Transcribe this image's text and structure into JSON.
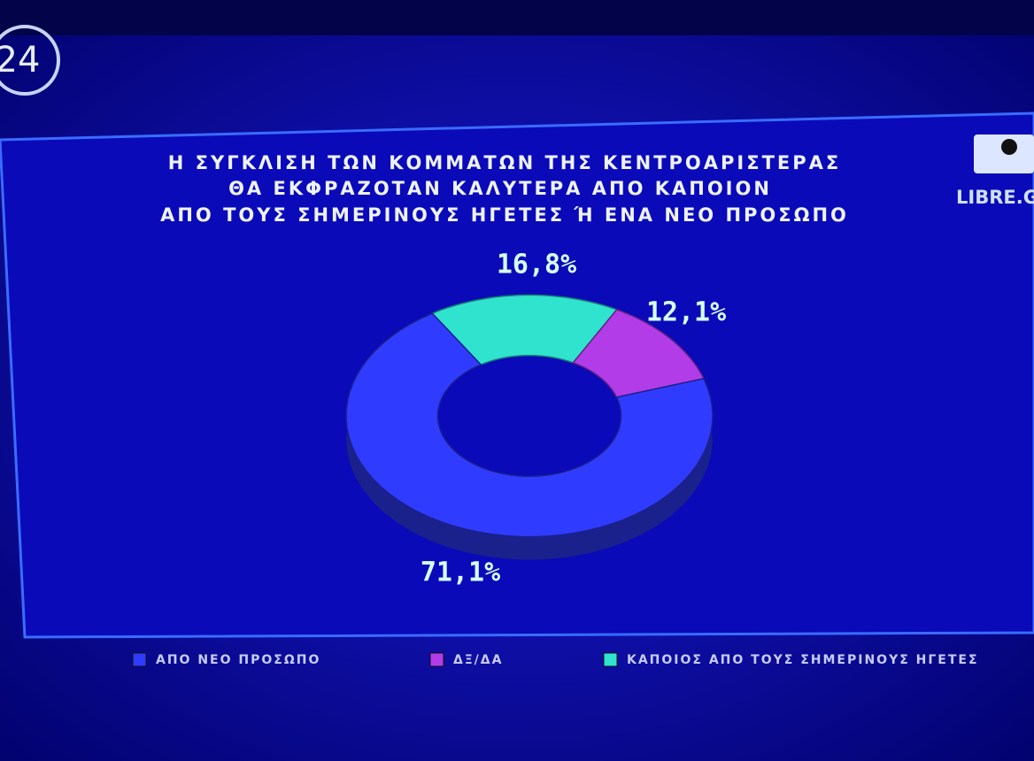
{
  "channel_logo": "24",
  "source": "LIBRE.G",
  "chart_data": {
    "type": "donut",
    "title": [
      "Η ΣΥΓΚΛΙΣΗ ΤΩΝ ΚΟΜΜΑΤΩΝ ΤΗΣ ΚΕΝΤΡΟΑΡΙΣΤΕΡΑΣ",
      "ΘΑ ΕΚΦΡΑΖΟΤΑΝ ΚΑΛΥΤΕΡΑ ΑΠΟ ΚΑΠΟΙΟΝ",
      "ΑΠΟ ΤΟΥΣ ΣΗΜΕΡΙΝΟΥΣ ΗΓΕΤΕΣ Ή ΕΝΑ ΝΕΟ ΠΡΟΣΩΠΟ"
    ],
    "categories": [
      "ΑΠΟ ΝΕΟ ΠΡΟΣΩΠΟ",
      "ΔΞ/ΔΑ",
      "ΚΑΠΟΙΟΣ ΑΠΟ ΤΟΥΣ ΣΗΜΕΡΙΝΟΥΣ ΗΓΕΤΕΣ"
    ],
    "values": [
      71.1,
      12.1,
      16.8
    ],
    "value_labels": [
      "71,1%",
      "12,1%",
      "16,8%"
    ],
    "colors": [
      "#2f3cff",
      "#b23ce8",
      "#2fe3cf"
    ]
  }
}
